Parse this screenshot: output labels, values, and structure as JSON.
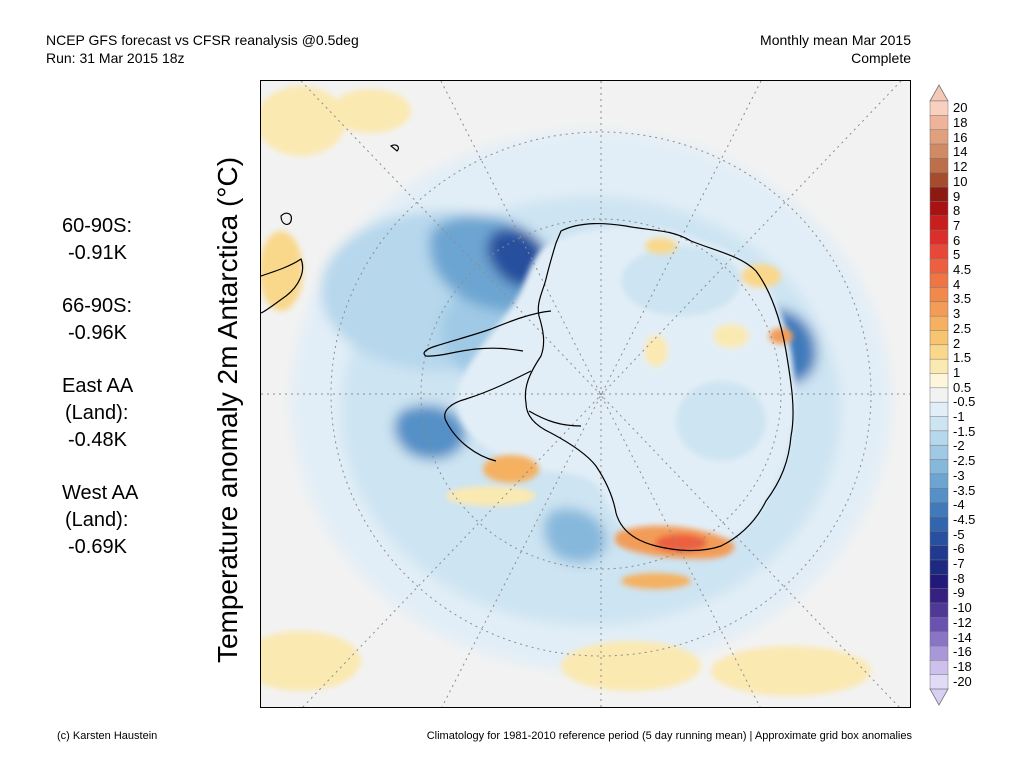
{
  "header": {
    "title_line1": "NCEP GFS forecast vs CFSR reanalysis @0.5deg",
    "title_line2": "Run: 31 Mar 2015 18z",
    "period_line1": "Monthly mean Mar 2015",
    "period_line2": "Complete"
  },
  "map": {
    "variable_label": "Temperature anomaly 2m Antarctica (°C)",
    "projection": "south-polar-stereographic",
    "land_outline_color": "#000000",
    "graticule_color": "#8c8c8c"
  },
  "stats": [
    {
      "region": "60-90S:",
      "value": "-0.91K"
    },
    {
      "region": "66-90S:",
      "value": "-0.96K"
    },
    {
      "region": "East AA",
      "region2": "(Land):",
      "value": "-0.48K"
    },
    {
      "region": "West AA",
      "region2": "(Land):",
      "value": "-0.69K"
    }
  ],
  "colorbar": {
    "labels": [
      "20",
      "18",
      "16",
      "14",
      "12",
      "10",
      "9",
      "8",
      "7",
      "6",
      "5",
      "4.5",
      "4",
      "3.5",
      "3",
      "2.5",
      "2",
      "1.5",
      "1",
      "0.5",
      "-0.5",
      "-1",
      "-1.5",
      "-2",
      "-2.5",
      "-3",
      "-3.5",
      "-4",
      "-4.5",
      "-5",
      "-6",
      "-7",
      "-8",
      "-9",
      "-10",
      "-12",
      "-14",
      "-16",
      "-18",
      "-20"
    ],
    "colors": [
      "#f9d0c0",
      "#eeb49b",
      "#e0a07e",
      "#d08a64",
      "#bd6f4a",
      "#a44c2b",
      "#8c1a10",
      "#a81212",
      "#c81e1e",
      "#dc2e2a",
      "#e8483a",
      "#ec6040",
      "#ef7545",
      "#f1894c",
      "#f39c58",
      "#f5b060",
      "#f7c470",
      "#f9d88c",
      "#fbe9b2",
      "#fdf6dc",
      "#f2f2f2",
      "#e2eef7",
      "#cde4f2",
      "#b6d7ec",
      "#9fc9e5",
      "#86b8dc",
      "#6da5d2",
      "#5590c7",
      "#407abb",
      "#3165ad",
      "#28509e",
      "#21398e",
      "#1c2a80",
      "#221a7a",
      "#362080",
      "#4f3896",
      "#6a52b0",
      "#8a74c6",
      "#a898d8",
      "#cdc0ec",
      "#e2dbf6"
    ],
    "under_color": "#d8d0f2",
    "over_color": "#f6c8b6"
  },
  "footer": {
    "credit": "(c) Karsten Haustein",
    "note": "Climatology for 1981-2010 reference period (5 day running mean) | Approximate grid box anomalies"
  }
}
